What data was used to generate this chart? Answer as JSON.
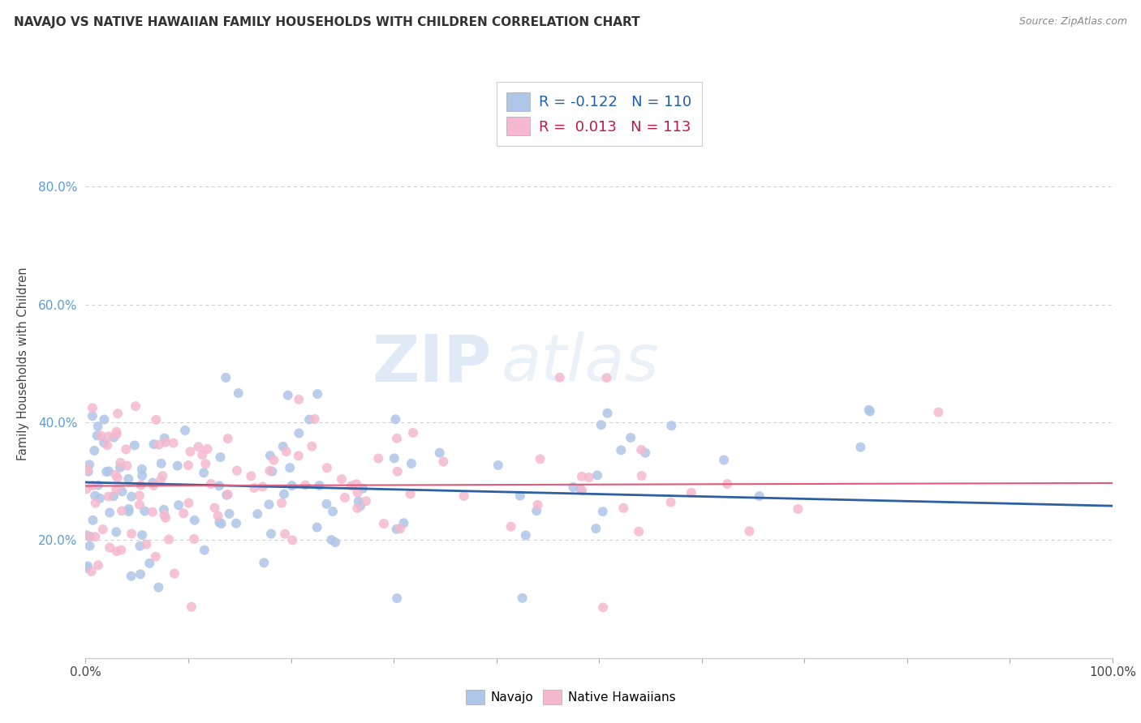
{
  "title": "NAVAJO VS NATIVE HAWAIIAN FAMILY HOUSEHOLDS WITH CHILDREN CORRELATION CHART",
  "source": "Source: ZipAtlas.com",
  "ylabel": "Family Households with Children",
  "navajo_R": -0.122,
  "navajo_N": 110,
  "hawaiian_R": 0.013,
  "hawaiian_N": 113,
  "navajo_color": "#aec6e8",
  "hawaiian_color": "#f5b8ce",
  "navajo_line_color": "#2e5fa3",
  "hawaiian_line_color": "#e05a7a",
  "background_color": "#ffffff",
  "grid_color": "#cccccc",
  "watermark_zip": "ZIP",
  "watermark_atlas": "atlas",
  "title_fontsize": 11,
  "source_fontsize": 9,
  "ytick_color": "#5b9bd5",
  "legend_R_color_navajo": "#1f5fa6",
  "legend_R_color_hawaiian": "#c0174b",
  "legend_N_color": "#2196f3"
}
